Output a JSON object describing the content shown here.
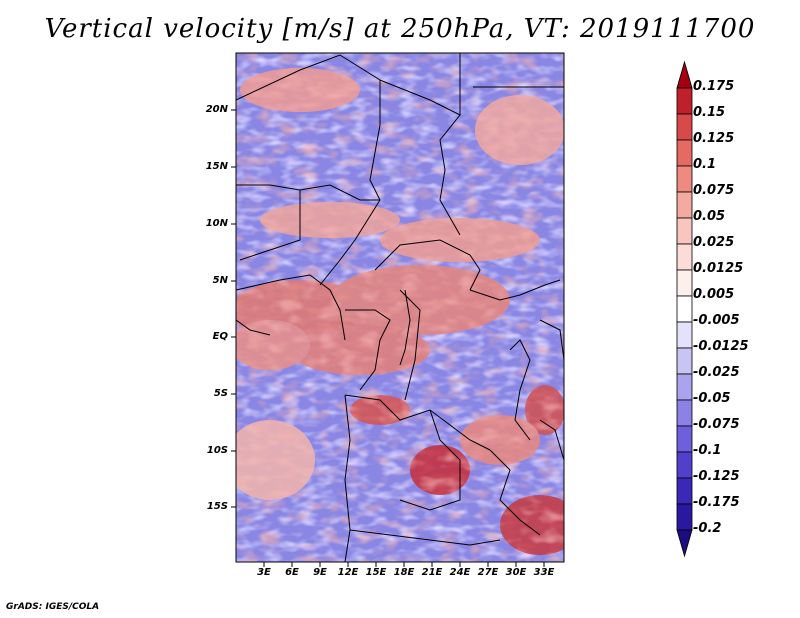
{
  "title": "Vertical velocity [m/s] at 250hPa, VT: 2019111700",
  "credit": "GrADS: IGES/COLA",
  "map": {
    "lat_labels": [
      "20N",
      "15N",
      "10N",
      "5N",
      "EQ",
      "5S",
      "10S",
      "15S"
    ],
    "lon_labels": [
      "3E",
      "6E",
      "9E",
      "12E",
      "15E",
      "18E",
      "21E",
      "24E",
      "27E",
      "30E",
      "33E"
    ]
  },
  "colorbar": {
    "levels": [
      "0.175",
      "0.15",
      "0.125",
      "0.1",
      "0.075",
      "0.05",
      "0.025",
      "0.0125",
      "0.005",
      "-0.005",
      "-0.0125",
      "-0.025",
      "-0.05",
      "-0.075",
      "-0.1",
      "-0.125",
      "-0.175",
      "-0.2"
    ],
    "colors": [
      "#a30010",
      "#c0202c",
      "#d84a4a",
      "#e66a64",
      "#ee8a80",
      "#f4aaa0",
      "#f8c6be",
      "#fbdcd6",
      "#fdf0ec",
      "#ffffff",
      "#e4e2fa",
      "#c8c4f4",
      "#aaa4ee",
      "#8c82e6",
      "#6e60dc",
      "#5040cc",
      "#3a28b8",
      "#2a18a0",
      "#1c0c80"
    ]
  }
}
